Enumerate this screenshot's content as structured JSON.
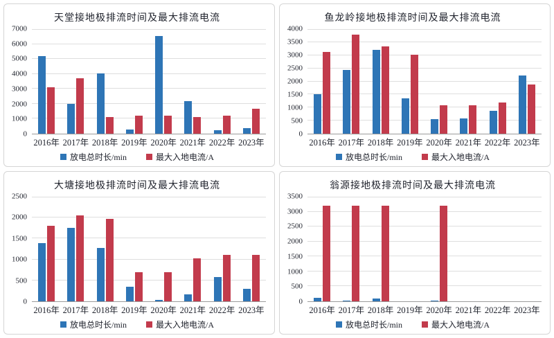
{
  "colors": {
    "series_blue": "#2E75B6",
    "series_red": "#C23B4C",
    "gridline": "#dedede",
    "axis_line": "#9b9b9b",
    "panel_border": "#d5d5d5",
    "text": "#21242e"
  },
  "legend": {
    "blue_label": "放电总时长/min",
    "red_label": "最大入地电流/A"
  },
  "chart_data": [
    {
      "type": "bar",
      "title": "天堂接地极排流时间及最大排流电流",
      "categories": [
        "2016年",
        "2017年",
        "2018年",
        "2019年",
        "2020年",
        "2021年",
        "2022年",
        "2023年"
      ],
      "series": [
        {
          "name": "放电总时长/min",
          "color": "#2E75B6",
          "values": [
            5200,
            2000,
            4050,
            300,
            6550,
            2200,
            230,
            360
          ]
        },
        {
          "name": "最大入地电流/A",
          "color": "#C23B4C",
          "values": [
            3100,
            3720,
            1120,
            1200,
            1200,
            1120,
            1200,
            1680
          ]
        }
      ],
      "xlabel": "",
      "ylabel": "",
      "ylim": [
        0,
        7000
      ],
      "ytick_step": 1000,
      "grid": true,
      "legend_position": "bottom"
    },
    {
      "type": "bar",
      "title": "鱼龙岭接地极排流时间及最大排流电流",
      "categories": [
        "2016年",
        "2017年",
        "2018年",
        "2019年",
        "2020年",
        "2021年",
        "2022年",
        "2023年"
      ],
      "series": [
        {
          "name": "放电总时长/min",
          "color": "#2E75B6",
          "values": [
            1500,
            2450,
            3200,
            1350,
            550,
            590,
            880,
            2220
          ]
        },
        {
          "name": "最大入地电流/A",
          "color": "#C23B4C",
          "values": [
            3130,
            3780,
            3330,
            3020,
            1080,
            1080,
            1180,
            1880
          ]
        }
      ],
      "xlabel": "",
      "ylabel": "",
      "ylim": [
        0,
        4000
      ],
      "ytick_step": 500,
      "grid": true,
      "legend_position": "bottom"
    },
    {
      "type": "bar",
      "title": "大塘接地极排流时间及最大排流电流",
      "categories": [
        "2016年",
        "2017年",
        "2018年",
        "2019年",
        "2020年",
        "2021年",
        "2022年",
        "2023年"
      ],
      "series": [
        {
          "name": "放电总时长/min",
          "color": "#2E75B6",
          "values": [
            1390,
            1760,
            1280,
            340,
            30,
            160,
            580,
            300
          ]
        },
        {
          "name": "最大入地电流/A",
          "color": "#C23B4C",
          "values": [
            1810,
            2060,
            1970,
            700,
            700,
            1020,
            1110,
            1110
          ]
        }
      ],
      "xlabel": "",
      "ylabel": "",
      "ylim": [
        0,
        2500
      ],
      "ytick_step": 500,
      "grid": true,
      "legend_position": "bottom"
    },
    {
      "type": "bar",
      "title": "翁源接地极排流时间及最大排流电流",
      "categories": [
        "2016年",
        "2017年",
        "2018年",
        "2019年",
        "2020年",
        "2021年",
        "2022年",
        "2023年"
      ],
      "series": [
        {
          "name": "放电总时长/min",
          "color": "#2E75B6",
          "values": [
            110,
            35,
            95,
            0,
            35,
            0,
            0,
            0
          ]
        },
        {
          "name": "最大入地电流/A",
          "color": "#C23B4C",
          "values": [
            3200,
            3200,
            3200,
            0,
            3200,
            0,
            0,
            0
          ]
        }
      ],
      "xlabel": "",
      "ylabel": "",
      "ylim": [
        0,
        3500
      ],
      "ytick_step": 500,
      "grid": true,
      "legend_position": "bottom"
    }
  ]
}
